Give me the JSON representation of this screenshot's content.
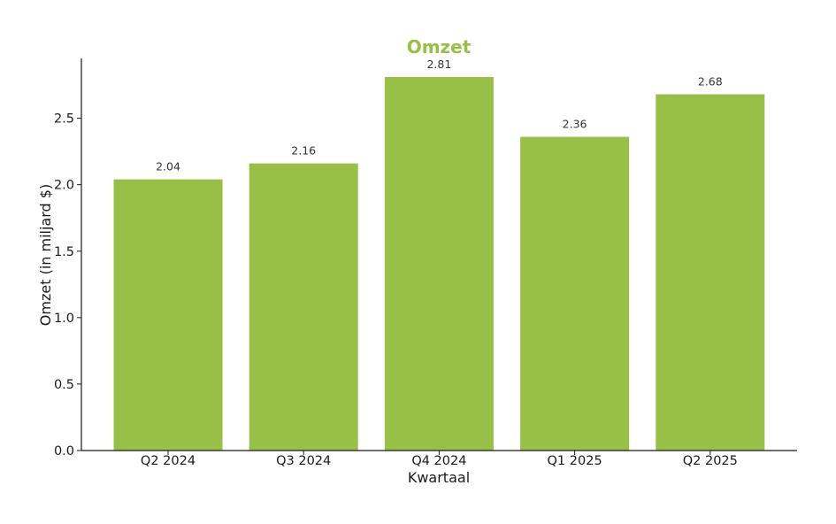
{
  "chart_data": {
    "type": "bar",
    "title": "Omzet",
    "xlabel": "Kwartaal",
    "ylabel": "Omzet (in miljard $)",
    "categories": [
      "Q2 2024",
      "Q3 2024",
      "Q4 2024",
      "Q1 2025",
      "Q2 2025"
    ],
    "values": [
      2.04,
      2.16,
      2.81,
      2.36,
      2.68
    ],
    "data_labels": [
      "2.04",
      "2.16",
      "2.81",
      "2.36",
      "2.68"
    ],
    "ylim": [
      0,
      2.95
    ],
    "yticks": [
      0.0,
      0.5,
      1.0,
      1.5,
      2.0,
      2.5
    ],
    "ytick_labels": [
      "0.0",
      "0.5",
      "1.0",
      "1.5",
      "2.0",
      "2.5"
    ],
    "grid": false,
    "legend": "none",
    "colors": {
      "bar": "#98bf47",
      "title": "#98bf47",
      "axis": "#1a1a1a"
    }
  }
}
